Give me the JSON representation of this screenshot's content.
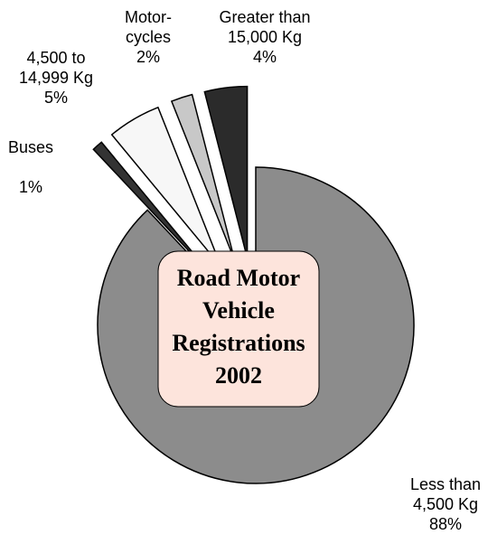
{
  "chart_data": {
    "type": "pie",
    "title": "Road Motor Vehicle Registrations 2002",
    "categories": [
      "Less than 4,500 Kg",
      "Buses",
      "4,500 to 14,999 Kg",
      "Motor-cycles",
      "Greater than 15,000 Kg"
    ],
    "values": [
      88,
      1,
      5,
      2,
      4
    ],
    "value_labels": [
      "88%",
      "1%",
      "5%",
      "2%",
      "4%"
    ],
    "colors": [
      "#8c8c8c",
      "#333333",
      "#f7f7f7",
      "#c8c8c8",
      "#2b2b2b"
    ]
  }
}
